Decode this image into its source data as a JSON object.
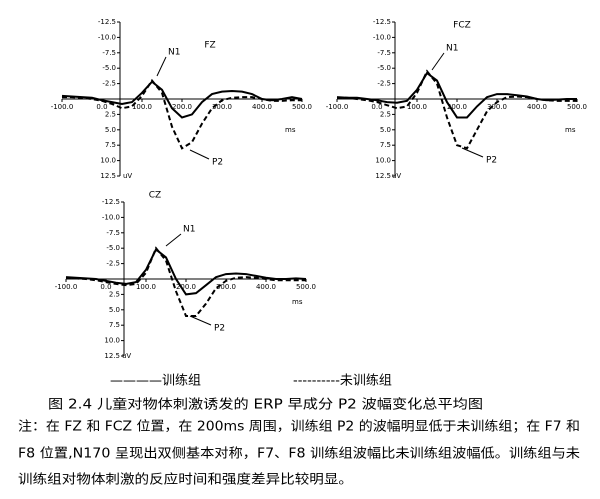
{
  "chart_data": [
    {
      "type": "line",
      "title": "FZ",
      "xlabel": "ms",
      "ylabel": "uV",
      "annotations": [
        "N1",
        "P2"
      ],
      "x": [
        -100,
        -75,
        -50,
        -25,
        0,
        25,
        50,
        75,
        100,
        125,
        150,
        175,
        200,
        225,
        250,
        275,
        300,
        325,
        350,
        375,
        400,
        425,
        450,
        475,
        500
      ],
      "xlim": [
        -100,
        500
      ],
      "xticks": [
        {
          "value": -100,
          "label": "-100.0"
        },
        {
          "value": 0,
          "label": "0.0"
        },
        {
          "value": 100,
          "label": "100.0"
        },
        {
          "value": 200,
          "label": "200.0"
        },
        {
          "value": 300,
          "label": "300.0"
        },
        {
          "value": 400,
          "label": "400.0"
        },
        {
          "value": 500,
          "label": "500.0"
        }
      ],
      "ylim": [
        -12.5,
        12.5
      ],
      "y_inverted": true,
      "yticks": [
        -12.5,
        {
          "value": -10,
          "label": "-10.0"
        },
        -7.5,
        {
          "value": -5,
          "label": "-5.0"
        },
        -2.5,
        2.5,
        {
          "value": 5,
          "label": "5.0"
        },
        7.5,
        {
          "value": 10,
          "label": "10.0"
        },
        12.5
      ],
      "series": [
        {
          "color": "#000000",
          "dash": "solid",
          "values": [
            -0.5,
            -0.4,
            -0.3,
            -0.2,
            0.2,
            0.5,
            0.8,
            0.5,
            -1.0,
            -2.8,
            -1.5,
            1.5,
            3.0,
            2.5,
            0.5,
            -0.8,
            -1.2,
            -1.3,
            -1.2,
            -0.8,
            0.0,
            0.2,
            0.0,
            -0.3,
            0.0
          ]
        },
        {
          "color": "#000000",
          "dash": "dashed",
          "values": [
            -0.3,
            -0.3,
            -0.2,
            0.0,
            0.3,
            0.8,
            1.5,
            1.2,
            -0.5,
            -3.0,
            -1.0,
            4.5,
            8.0,
            7.0,
            4.0,
            1.5,
            0.2,
            -0.2,
            -0.3,
            -0.3,
            0.0,
            0.3,
            0.3,
            0.2,
            0.2
          ]
        }
      ]
    },
    {
      "type": "line",
      "title": "FCZ",
      "xlabel": "ms",
      "ylabel": "uV",
      "annotations": [
        "N1",
        "P2"
      ],
      "x": [
        -100,
        -75,
        -50,
        -25,
        0,
        25,
        50,
        75,
        100,
        125,
        150,
        175,
        200,
        225,
        250,
        275,
        300,
        325,
        350,
        375,
        400,
        425,
        450,
        475,
        500
      ],
      "xlim": [
        -100,
        500
      ],
      "xticks": [
        {
          "value": -100,
          "label": "-100.0"
        },
        {
          "value": 0,
          "label": "0.0"
        },
        {
          "value": 100,
          "label": "100.0"
        },
        {
          "value": 200,
          "label": "200.0"
        },
        {
          "value": 300,
          "label": "300.0"
        },
        {
          "value": 400,
          "label": "400.0"
        },
        {
          "value": 500,
          "label": "500.0"
        }
      ],
      "ylim": [
        -12.5,
        12.5
      ],
      "y_inverted": true,
      "yticks": [
        -12.5,
        {
          "value": -10,
          "label": "-10.0"
        },
        -7.5,
        {
          "value": -5,
          "label": "-5.0"
        },
        -2.5,
        2.5,
        {
          "value": 5,
          "label": "5.0"
        },
        7.5,
        {
          "value": 10,
          "label": "10.0"
        },
        12.5
      ],
      "series": [
        {
          "color": "#000000",
          "dash": "solid",
          "values": [
            -0.3,
            -0.2,
            -0.2,
            0.0,
            0.2,
            0.5,
            0.6,
            0.3,
            -1.5,
            -4.2,
            -3.0,
            0.5,
            3.0,
            3.0,
            1.2,
            -0.3,
            -0.8,
            -0.8,
            -0.6,
            -0.4,
            0.0,
            0.2,
            0.1,
            0.0,
            0.0
          ]
        },
        {
          "color": "#000000",
          "dash": "dashed",
          "values": [
            -0.2,
            -0.2,
            0.0,
            0.2,
            0.5,
            1.0,
            1.5,
            1.2,
            -1.0,
            -4.5,
            -2.5,
            3.0,
            7.5,
            8.0,
            5.0,
            2.0,
            0.5,
            -0.3,
            -0.4,
            -0.3,
            0.0,
            0.2,
            0.3,
            0.3,
            0.3
          ]
        }
      ]
    },
    {
      "type": "line",
      "title": "CZ",
      "xlabel": "ms",
      "ylabel": "uV",
      "annotations": [
        "N1",
        "P2"
      ],
      "x": [
        -100,
        -75,
        -50,
        -25,
        0,
        25,
        50,
        75,
        100,
        125,
        150,
        175,
        200,
        225,
        250,
        275,
        300,
        325,
        350,
        375,
        400,
        425,
        450,
        475,
        500
      ],
      "xlim": [
        -100,
        500
      ],
      "xticks": [
        {
          "value": -100,
          "label": "-100.0"
        },
        {
          "value": 0,
          "label": "0.0"
        },
        {
          "value": 100,
          "label": "100.0"
        },
        {
          "value": 200,
          "label": "200.0"
        },
        {
          "value": 300,
          "label": "300.0"
        },
        {
          "value": 400,
          "label": "400.0"
        },
        {
          "value": 500,
          "label": "500.0"
        }
      ],
      "ylim": [
        -12.5,
        12.5
      ],
      "y_inverted": true,
      "yticks": [
        -12.5,
        {
          "value": -10,
          "label": "-10.0"
        },
        -7.5,
        {
          "value": -5,
          "label": "-5.0"
        },
        -2.5,
        2.5,
        {
          "value": 5,
          "label": "5.0"
        },
        7.5,
        {
          "value": 10,
          "label": "10.0"
        },
        12.5
      ],
      "series": [
        {
          "color": "#000000",
          "dash": "solid",
          "values": [
            -0.3,
            -0.2,
            -0.1,
            0.0,
            0.3,
            0.6,
            0.8,
            0.5,
            -1.5,
            -4.8,
            -3.5,
            0.0,
            2.5,
            2.3,
            1.0,
            -0.3,
            -0.8,
            -0.9,
            -0.8,
            -0.5,
            -0.2,
            0.0,
            0.0,
            -0.1,
            0.0
          ]
        },
        {
          "color": "#000000",
          "dash": "dashed",
          "values": [
            -0.2,
            -0.1,
            0.0,
            0.2,
            0.5,
            0.8,
            1.0,
            0.8,
            -1.0,
            -5.0,
            -3.0,
            2.0,
            6.0,
            6.0,
            4.0,
            1.5,
            0.3,
            -0.2,
            -0.3,
            -0.2,
            0.0,
            0.2,
            0.2,
            0.2,
            0.2
          ]
        }
      ]
    }
  ],
  "legend": [
    "————训练组",
    "----------未训练组"
  ],
  "caption": "图 2.4  儿童对物体刺激诱发的 ERP 早成分 P2 波幅变化总平均图",
  "note": [
    "注：在 FZ 和 FCZ 位置，在 200ms 周围，训练组 P2 的波幅明显低于未训练组；在 F7 和",
    "F8 位置,N170 呈现出双侧基本对称，F7、F8 训练组波幅比未训练组波幅低。训练组与未",
    "训练组对物体刺激的反应时间和强度差异比较明显。"
  ]
}
